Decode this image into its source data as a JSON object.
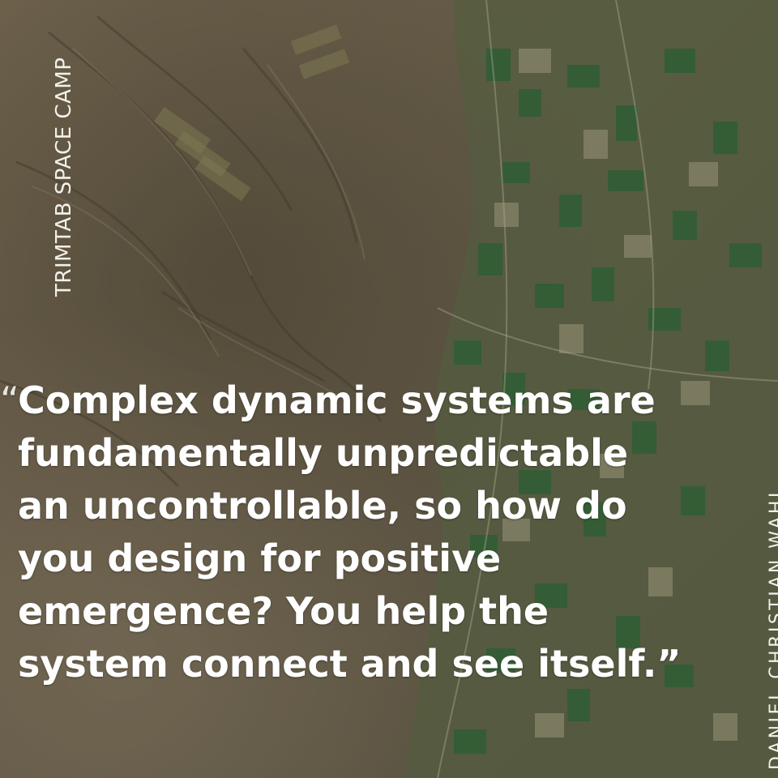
{
  "side_label_left": "TRIMTAB SPACE CAMP",
  "side_label_right": "DANIEL CHRISTIAN WAHL",
  "quote": {
    "open_mark": "“",
    "lines": [
      "Complex dynamic systems are",
      "fundamentally unpredictable",
      "an uncontrollable, so how do",
      "you design for positive",
      "emergence? You help the",
      "system connect and see itself.”"
    ]
  },
  "colors": {
    "text": "#ffffff",
    "terrain_brown": "#7a6c55",
    "field_green": "#2f6b3a"
  }
}
